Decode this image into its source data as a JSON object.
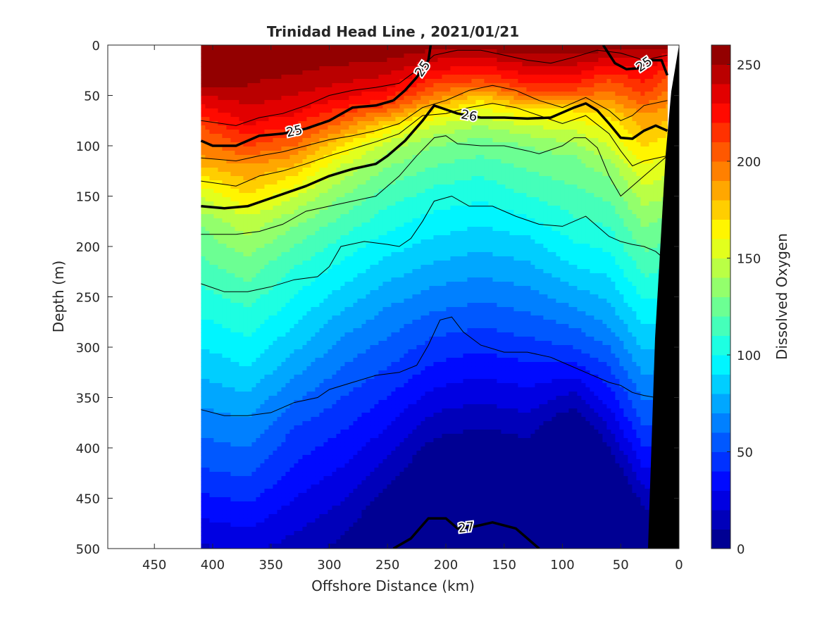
{
  "chart_data": {
    "type": "heatmap",
    "title": "Trinidad Head Line , 2021/01/21",
    "xlabel": "Offshore Distance (km)",
    "ylabel": "Depth (m)",
    "colorbar_label": "Dissolved Oxygen",
    "xlim": [
      490,
      0
    ],
    "ylim": [
      0,
      500
    ],
    "x_ticks": [
      450,
      400,
      350,
      300,
      250,
      200,
      150,
      100,
      50,
      0
    ],
    "y_ticks": [
      0,
      50,
      100,
      150,
      200,
      250,
      300,
      350,
      400,
      450,
      500
    ],
    "clim": [
      0,
      260
    ],
    "colorbar_ticks": [
      0,
      50,
      100,
      150,
      200,
      250
    ],
    "colormap": "jet",
    "data_extent_x": [
      410,
      10
    ],
    "bathymetry_color": "#000000",
    "oxygen_profile": {
      "x": [
        410,
        370,
        330,
        290,
        250,
        210,
        170,
        130,
        90,
        60,
        30,
        10
      ],
      "oxygen_levels": [
        250,
        230,
        210,
        190,
        170,
        150,
        130,
        110,
        90,
        70,
        50,
        30
      ],
      "depths_of_levels": [
        [
          40,
          60,
          80,
          110,
          130,
          150,
          180,
          240,
          300,
          360,
          420,
          470
        ],
        [
          40,
          80,
          100,
          120,
          150,
          170,
          210,
          260,
          320,
          370,
          430,
          480
        ],
        [
          30,
          70,
          90,
          110,
          130,
          150,
          180,
          220,
          280,
          330,
          380,
          450
        ],
        [
          20,
          55,
          70,
          85,
          100,
          120,
          150,
          190,
          240,
          290,
          350,
          420
        ],
        [
          15,
          45,
          60,
          70,
          80,
          95,
          120,
          160,
          210,
          260,
          320,
          380
        ],
        [
          5,
          25,
          40,
          55,
          65,
          80,
          100,
          140,
          190,
          240,
          290,
          340
        ],
        [
          5,
          20,
          35,
          45,
          55,
          70,
          90,
          130,
          180,
          230,
          280,
          330
        ],
        [
          10,
          30,
          45,
          55,
          65,
          80,
          100,
          150,
          190,
          240,
          290,
          340
        ],
        [
          10,
          30,
          45,
          55,
          65,
          85,
          110,
          170,
          220,
          260,
          300,
          330
        ],
        [
          5,
          20,
          35,
          55,
          70,
          100,
          130,
          180,
          230,
          280,
          320,
          360
        ],
        [
          5,
          25,
          50,
          70,
          100,
          140,
          180,
          230,
          280,
          330,
          380,
          420
        ],
        [
          5,
          15,
          30,
          60,
          90,
          130,
          170,
          220,
          270,
          320,
          370,
          420
        ]
      ]
    },
    "density_contours": [
      {
        "level": 25,
        "label": "25",
        "style": "bold",
        "x": [
          410,
          400,
          380,
          360,
          340,
          320,
          300,
          280,
          260,
          245
        ],
        "y": [
          95,
          100,
          100,
          90,
          88,
          83,
          75,
          62,
          60,
          55
        ]
      },
      {
        "level": 25,
        "label": "25",
        "style": "bold",
        "x": [
          245,
          235,
          225,
          215,
          213
        ],
        "y": [
          55,
          45,
          32,
          15,
          0
        ]
      },
      {
        "level": 25,
        "label": "25",
        "style": "bold",
        "x": [
          65,
          55,
          45,
          35,
          25,
          15,
          10
        ],
        "y": [
          0,
          18,
          24,
          23,
          15,
          15,
          30
        ]
      },
      {
        "level": 26,
        "label": "26",
        "style": "bold",
        "x": [
          410,
          390,
          370,
          350,
          320,
          300,
          280,
          260,
          250,
          235,
          220,
          210,
          190,
          170,
          150,
          130,
          110,
          90,
          80,
          70,
          60,
          50,
          40,
          30,
          20,
          10
        ],
        "y": [
          160,
          162,
          160,
          152,
          140,
          130,
          123,
          118,
          110,
          95,
          75,
          60,
          68,
          72,
          72,
          73,
          72,
          62,
          58,
          65,
          78,
          92,
          93,
          85,
          80,
          85
        ]
      },
      {
        "level": 27,
        "label": "27",
        "style": "bold",
        "x": [
          245,
          230,
          215,
          200,
          190,
          175,
          160,
          140,
          120
        ],
        "y": [
          500,
          490,
          470,
          470,
          480,
          478,
          474,
          480,
          500
        ]
      }
    ],
    "thin_contours": [
      {
        "x": [
          410,
          380,
          360,
          340,
          320,
          300,
          280,
          260,
          240,
          225,
          210,
          190,
          170,
          150,
          130,
          110,
          90,
          70,
          50,
          30,
          10
        ],
        "y": [
          75,
          80,
          72,
          68,
          60,
          50,
          45,
          42,
          38,
          25,
          10,
          5,
          5,
          10,
          15,
          18,
          12,
          5,
          8,
          15,
          10
        ]
      },
      {
        "x": [
          410,
          380,
          360,
          340,
          320,
          300,
          280,
          260,
          240,
          220,
          200,
          180,
          160,
          140,
          120,
          100,
          80,
          60,
          50,
          40,
          30,
          10
        ],
        "y": [
          112,
          115,
          110,
          106,
          100,
          94,
          90,
          85,
          78,
          62,
          55,
          45,
          40,
          45,
          55,
          62,
          52,
          65,
          75,
          70,
          60,
          55
        ]
      },
      {
        "x": [
          410,
          380,
          360,
          340,
          320,
          300,
          280,
          260,
          240,
          220,
          200,
          180,
          160,
          140,
          120,
          100,
          80,
          60,
          50,
          40,
          30,
          10
        ],
        "y": [
          135,
          140,
          130,
          125,
          118,
          110,
          103,
          96,
          88,
          70,
          68,
          62,
          58,
          62,
          70,
          78,
          70,
          88,
          105,
          120,
          115,
          110
        ]
      },
      {
        "x": [
          410,
          380,
          360,
          340,
          320,
          300,
          280,
          260,
          240,
          225,
          210,
          200,
          190,
          170,
          150,
          130,
          120,
          100,
          90,
          80,
          70,
          60,
          50,
          40,
          30,
          20,
          10
        ],
        "y": [
          188,
          188,
          185,
          178,
          165,
          160,
          155,
          150,
          130,
          110,
          92,
          90,
          98,
          100,
          100,
          105,
          108,
          100,
          92,
          92,
          102,
          130,
          150,
          140,
          130,
          120,
          110
        ]
      },
      {
        "x": [
          410,
          390,
          370,
          350,
          330,
          310,
          300,
          290,
          270,
          250,
          240,
          230,
          220,
          210,
          195,
          180,
          160,
          140,
          120,
          100,
          80,
          70,
          60,
          50,
          40,
          30,
          20,
          10
        ],
        "y": [
          237,
          245,
          245,
          240,
          233,
          230,
          220,
          200,
          195,
          198,
          200,
          192,
          175,
          155,
          150,
          160,
          160,
          170,
          178,
          180,
          170,
          180,
          190,
          195,
          198,
          200,
          205,
          215
        ]
      },
      {
        "x": [
          410,
          390,
          370,
          350,
          330,
          310,
          300,
          280,
          260,
          240,
          225,
          215,
          205,
          195,
          185,
          170,
          150,
          130,
          110,
          100,
          80,
          60,
          50,
          40,
          30,
          20,
          10
        ],
        "y": [
          362,
          368,
          368,
          365,
          355,
          350,
          342,
          335,
          328,
          325,
          318,
          298,
          273,
          270,
          285,
          298,
          305,
          305,
          310,
          315,
          325,
          335,
          338,
          345,
          348,
          350,
          340
        ]
      }
    ]
  }
}
